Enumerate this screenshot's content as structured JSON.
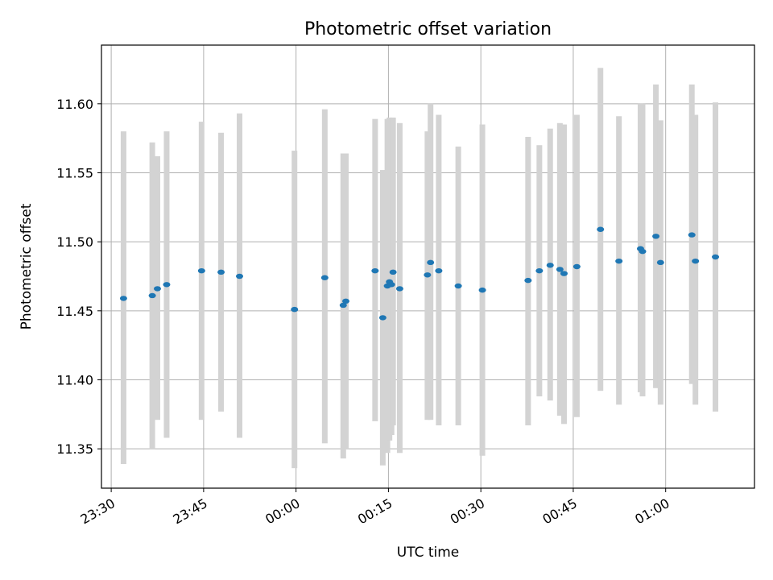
{
  "chart_data": {
    "type": "scatter",
    "title": "Photometric offset variation",
    "xlabel": "UTC time",
    "ylabel": "Photometric offset",
    "x_ticks": [
      "23:30",
      "23:45",
      "00:00",
      "00:15",
      "00:30",
      "00:45",
      "01:00"
    ],
    "y_ticks": [
      "11.35",
      "11.40",
      "11.45",
      "11.50",
      "11.55",
      "11.60"
    ],
    "xlim": [
      "23:28:25",
      "01:14:25"
    ],
    "ylim": [
      11.3215,
      11.6425
    ],
    "grid": true,
    "colors": {
      "point": "#1f77b4",
      "errorbar": "#d3d3d3",
      "grid": "#b0b0b0"
    },
    "points": [
      {
        "x": "23:32:00",
        "y": 11.459,
        "ylo": 11.339,
        "yhi": 11.58
      },
      {
        "x": "23:36:40",
        "y": 11.461,
        "ylo": 11.35,
        "yhi": 11.572
      },
      {
        "x": "23:37:30",
        "y": 11.466,
        "ylo": 11.371,
        "yhi": 11.562
      },
      {
        "x": "23:39:00",
        "y": 11.469,
        "ylo": 11.358,
        "yhi": 11.58
      },
      {
        "x": "23:44:40",
        "y": 11.479,
        "ylo": 11.371,
        "yhi": 11.587
      },
      {
        "x": "23:47:50",
        "y": 11.478,
        "ylo": 11.377,
        "yhi": 11.579
      },
      {
        "x": "23:50:50",
        "y": 11.475,
        "ylo": 11.358,
        "yhi": 11.593
      },
      {
        "x": "23:59:45",
        "y": 11.451,
        "ylo": 11.336,
        "yhi": 11.566
      },
      {
        "x": "00:04:40",
        "y": 11.474,
        "ylo": 11.354,
        "yhi": 11.596
      },
      {
        "x": "00:07:40",
        "y": 11.454,
        "ylo": 11.343,
        "yhi": 11.564
      },
      {
        "x": "00:08:05",
        "y": 11.457,
        "ylo": 11.35,
        "yhi": 11.564
      },
      {
        "x": "00:12:50",
        "y": 11.479,
        "ylo": 11.37,
        "yhi": 11.589
      },
      {
        "x": "00:14:05",
        "y": 11.445,
        "ylo": 11.338,
        "yhi": 11.552
      },
      {
        "x": "00:14:50",
        "y": 11.468,
        "ylo": 11.347,
        "yhi": 11.589
      },
      {
        "x": "00:15:10",
        "y": 11.471,
        "ylo": 11.356,
        "yhi": 11.59
      },
      {
        "x": "00:15:30",
        "y": 11.469,
        "ylo": 11.36,
        "yhi": 11.59
      },
      {
        "x": "00:15:45",
        "y": 11.478,
        "ylo": 11.367,
        "yhi": 11.59
      },
      {
        "x": "00:16:50",
        "y": 11.466,
        "ylo": 11.347,
        "yhi": 11.586
      },
      {
        "x": "00:21:20",
        "y": 11.476,
        "ylo": 11.371,
        "yhi": 11.58
      },
      {
        "x": "00:21:50",
        "y": 11.485,
        "ylo": 11.371,
        "yhi": 11.6
      },
      {
        "x": "00:23:10",
        "y": 11.479,
        "ylo": 11.367,
        "yhi": 11.592
      },
      {
        "x": "00:26:20",
        "y": 11.468,
        "ylo": 11.367,
        "yhi": 11.569
      },
      {
        "x": "00:30:15",
        "y": 11.465,
        "ylo": 11.345,
        "yhi": 11.585
      },
      {
        "x": "00:37:40",
        "y": 11.472,
        "ylo": 11.367,
        "yhi": 11.576
      },
      {
        "x": "00:39:30",
        "y": 11.479,
        "ylo": 11.388,
        "yhi": 11.57
      },
      {
        "x": "00:41:15",
        "y": 11.483,
        "ylo": 11.385,
        "yhi": 11.582
      },
      {
        "x": "00:42:50",
        "y": 11.48,
        "ylo": 11.374,
        "yhi": 11.586
      },
      {
        "x": "00:43:30",
        "y": 11.477,
        "ylo": 11.368,
        "yhi": 11.585
      },
      {
        "x": "00:45:35",
        "y": 11.482,
        "ylo": 11.373,
        "yhi": 11.592
      },
      {
        "x": "00:49:25",
        "y": 11.509,
        "ylo": 11.392,
        "yhi": 11.626
      },
      {
        "x": "00:52:25",
        "y": 11.486,
        "ylo": 11.382,
        "yhi": 11.591
      },
      {
        "x": "00:55:55",
        "y": 11.495,
        "ylo": 11.391,
        "yhi": 11.6
      },
      {
        "x": "00:56:15",
        "y": 11.493,
        "ylo": 11.388,
        "yhi": 11.6
      },
      {
        "x": "00:58:25",
        "y": 11.504,
        "ylo": 11.394,
        "yhi": 11.614
      },
      {
        "x": "00:59:10",
        "y": 11.485,
        "ylo": 11.382,
        "yhi": 11.588
      },
      {
        "x": "01:04:15",
        "y": 11.505,
        "ylo": 11.397,
        "yhi": 11.614
      },
      {
        "x": "01:04:50",
        "y": 11.486,
        "ylo": 11.382,
        "yhi": 11.592
      },
      {
        "x": "01:08:05",
        "y": 11.489,
        "ylo": 11.377,
        "yhi": 11.601
      }
    ]
  }
}
